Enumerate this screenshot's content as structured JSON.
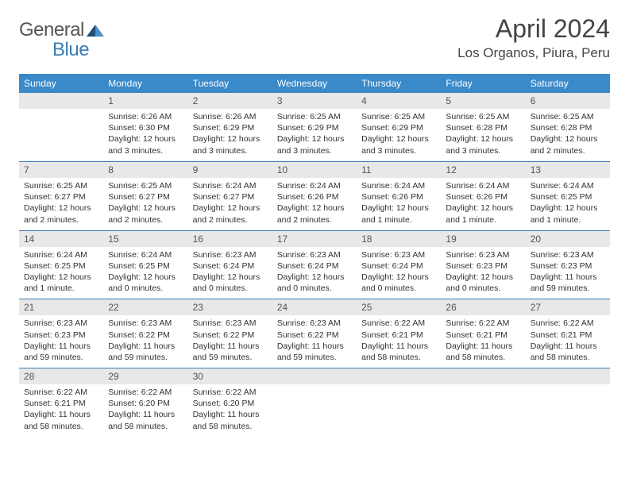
{
  "brand": {
    "general": "General",
    "blue": "Blue"
  },
  "title": "April 2024",
  "location": "Los Organos, Piura, Peru",
  "colors": {
    "header_bg": "#3a89c9",
    "header_text": "#ffffff",
    "accent": "#3a7db5",
    "daynum_bg": "#e8e8e8",
    "body_text": "#333333",
    "page_bg": "#ffffff"
  },
  "typography": {
    "title_fontsize": 32,
    "location_fontsize": 17,
    "dayheader_fontsize": 12,
    "cell_fontsize": 10.5
  },
  "day_headers": [
    "Sunday",
    "Monday",
    "Tuesday",
    "Wednesday",
    "Thursday",
    "Friday",
    "Saturday"
  ],
  "weeks": [
    [
      {
        "num": "",
        "sunrise": "",
        "sunset": "",
        "daylight": ""
      },
      {
        "num": "1",
        "sunrise": "Sunrise: 6:26 AM",
        "sunset": "Sunset: 6:30 PM",
        "daylight": "Daylight: 12 hours and 3 minutes."
      },
      {
        "num": "2",
        "sunrise": "Sunrise: 6:26 AM",
        "sunset": "Sunset: 6:29 PM",
        "daylight": "Daylight: 12 hours and 3 minutes."
      },
      {
        "num": "3",
        "sunrise": "Sunrise: 6:25 AM",
        "sunset": "Sunset: 6:29 PM",
        "daylight": "Daylight: 12 hours and 3 minutes."
      },
      {
        "num": "4",
        "sunrise": "Sunrise: 6:25 AM",
        "sunset": "Sunset: 6:29 PM",
        "daylight": "Daylight: 12 hours and 3 minutes."
      },
      {
        "num": "5",
        "sunrise": "Sunrise: 6:25 AM",
        "sunset": "Sunset: 6:28 PM",
        "daylight": "Daylight: 12 hours and 3 minutes."
      },
      {
        "num": "6",
        "sunrise": "Sunrise: 6:25 AM",
        "sunset": "Sunset: 6:28 PM",
        "daylight": "Daylight: 12 hours and 2 minutes."
      }
    ],
    [
      {
        "num": "7",
        "sunrise": "Sunrise: 6:25 AM",
        "sunset": "Sunset: 6:27 PM",
        "daylight": "Daylight: 12 hours and 2 minutes."
      },
      {
        "num": "8",
        "sunrise": "Sunrise: 6:25 AM",
        "sunset": "Sunset: 6:27 PM",
        "daylight": "Daylight: 12 hours and 2 minutes."
      },
      {
        "num": "9",
        "sunrise": "Sunrise: 6:24 AM",
        "sunset": "Sunset: 6:27 PM",
        "daylight": "Daylight: 12 hours and 2 minutes."
      },
      {
        "num": "10",
        "sunrise": "Sunrise: 6:24 AM",
        "sunset": "Sunset: 6:26 PM",
        "daylight": "Daylight: 12 hours and 2 minutes."
      },
      {
        "num": "11",
        "sunrise": "Sunrise: 6:24 AM",
        "sunset": "Sunset: 6:26 PM",
        "daylight": "Daylight: 12 hours and 1 minute."
      },
      {
        "num": "12",
        "sunrise": "Sunrise: 6:24 AM",
        "sunset": "Sunset: 6:26 PM",
        "daylight": "Daylight: 12 hours and 1 minute."
      },
      {
        "num": "13",
        "sunrise": "Sunrise: 6:24 AM",
        "sunset": "Sunset: 6:25 PM",
        "daylight": "Daylight: 12 hours and 1 minute."
      }
    ],
    [
      {
        "num": "14",
        "sunrise": "Sunrise: 6:24 AM",
        "sunset": "Sunset: 6:25 PM",
        "daylight": "Daylight: 12 hours and 1 minute."
      },
      {
        "num": "15",
        "sunrise": "Sunrise: 6:24 AM",
        "sunset": "Sunset: 6:25 PM",
        "daylight": "Daylight: 12 hours and 0 minutes."
      },
      {
        "num": "16",
        "sunrise": "Sunrise: 6:23 AM",
        "sunset": "Sunset: 6:24 PM",
        "daylight": "Daylight: 12 hours and 0 minutes."
      },
      {
        "num": "17",
        "sunrise": "Sunrise: 6:23 AM",
        "sunset": "Sunset: 6:24 PM",
        "daylight": "Daylight: 12 hours and 0 minutes."
      },
      {
        "num": "18",
        "sunrise": "Sunrise: 6:23 AM",
        "sunset": "Sunset: 6:24 PM",
        "daylight": "Daylight: 12 hours and 0 minutes."
      },
      {
        "num": "19",
        "sunrise": "Sunrise: 6:23 AM",
        "sunset": "Sunset: 6:23 PM",
        "daylight": "Daylight: 12 hours and 0 minutes."
      },
      {
        "num": "20",
        "sunrise": "Sunrise: 6:23 AM",
        "sunset": "Sunset: 6:23 PM",
        "daylight": "Daylight: 11 hours and 59 minutes."
      }
    ],
    [
      {
        "num": "21",
        "sunrise": "Sunrise: 6:23 AM",
        "sunset": "Sunset: 6:23 PM",
        "daylight": "Daylight: 11 hours and 59 minutes."
      },
      {
        "num": "22",
        "sunrise": "Sunrise: 6:23 AM",
        "sunset": "Sunset: 6:22 PM",
        "daylight": "Daylight: 11 hours and 59 minutes."
      },
      {
        "num": "23",
        "sunrise": "Sunrise: 6:23 AM",
        "sunset": "Sunset: 6:22 PM",
        "daylight": "Daylight: 11 hours and 59 minutes."
      },
      {
        "num": "24",
        "sunrise": "Sunrise: 6:23 AM",
        "sunset": "Sunset: 6:22 PM",
        "daylight": "Daylight: 11 hours and 59 minutes."
      },
      {
        "num": "25",
        "sunrise": "Sunrise: 6:22 AM",
        "sunset": "Sunset: 6:21 PM",
        "daylight": "Daylight: 11 hours and 58 minutes."
      },
      {
        "num": "26",
        "sunrise": "Sunrise: 6:22 AM",
        "sunset": "Sunset: 6:21 PM",
        "daylight": "Daylight: 11 hours and 58 minutes."
      },
      {
        "num": "27",
        "sunrise": "Sunrise: 6:22 AM",
        "sunset": "Sunset: 6:21 PM",
        "daylight": "Daylight: 11 hours and 58 minutes."
      }
    ],
    [
      {
        "num": "28",
        "sunrise": "Sunrise: 6:22 AM",
        "sunset": "Sunset: 6:21 PM",
        "daylight": "Daylight: 11 hours and 58 minutes."
      },
      {
        "num": "29",
        "sunrise": "Sunrise: 6:22 AM",
        "sunset": "Sunset: 6:20 PM",
        "daylight": "Daylight: 11 hours and 58 minutes."
      },
      {
        "num": "30",
        "sunrise": "Sunrise: 6:22 AM",
        "sunset": "Sunset: 6:20 PM",
        "daylight": "Daylight: 11 hours and 58 minutes."
      },
      {
        "num": "",
        "sunrise": "",
        "sunset": "",
        "daylight": ""
      },
      {
        "num": "",
        "sunrise": "",
        "sunset": "",
        "daylight": ""
      },
      {
        "num": "",
        "sunrise": "",
        "sunset": "",
        "daylight": ""
      },
      {
        "num": "",
        "sunrise": "",
        "sunset": "",
        "daylight": ""
      }
    ]
  ]
}
